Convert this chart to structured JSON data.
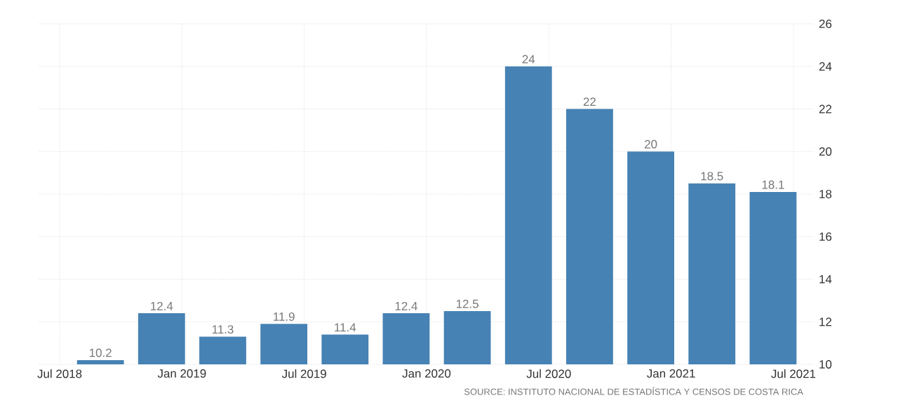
{
  "chart_data": {
    "type": "bar",
    "x": [
      "2018-09",
      "2018-12",
      "2019-03",
      "2019-06",
      "2019-09",
      "2019-12",
      "2020-03",
      "2020-06",
      "2020-09",
      "2020-12",
      "2021-03",
      "2021-06"
    ],
    "values": [
      10.2,
      12.4,
      11.3,
      11.9,
      11.4,
      12.4,
      12.5,
      24,
      22,
      20,
      18.5,
      18.1
    ],
    "color": "#4682b4",
    "data_labels": true,
    "xlim": [
      "2018-06",
      "2021-08"
    ],
    "xticks": [
      {
        "value": "2018-07",
        "label": "Jul 2018"
      },
      {
        "value": "2019-01",
        "label": "Jan 2019"
      },
      {
        "value": "2019-07",
        "label": "Jul 2019"
      },
      {
        "value": "2020-01",
        "label": "Jan 2020"
      },
      {
        "value": "2020-07",
        "label": "Jul 2020"
      },
      {
        "value": "2021-01",
        "label": "Jan 2021"
      },
      {
        "value": "2021-07",
        "label": "Jul 2021"
      }
    ],
    "ylim": [
      10,
      26
    ],
    "yticks": [
      10,
      12,
      14,
      16,
      18,
      20,
      22,
      24,
      26
    ],
    "grid": true,
    "annotations": [
      "SOURCE: INSTITUTO NACIONAL DE ESTADÍSTICA Y CENSOS DE COSTA RICA"
    ]
  }
}
